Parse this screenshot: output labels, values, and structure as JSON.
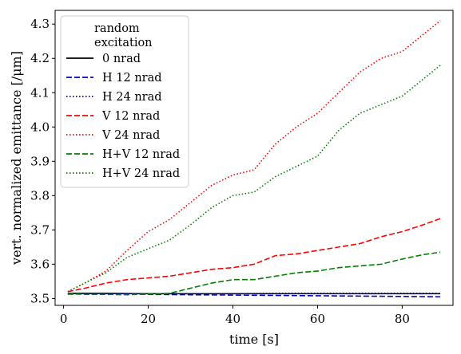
{
  "chart_data": {
    "type": "line",
    "xlabel": "time [s]",
    "ylabel": "vert. normalized emittance [/μm]",
    "xlim": [
      -2,
      92
    ],
    "ylim": [
      3.48,
      4.34
    ],
    "xticks": [
      0,
      20,
      40,
      60,
      80
    ],
    "yticks": [
      3.5,
      3.6,
      3.7,
      3.8,
      3.9,
      4.0,
      4.1,
      4.2,
      4.3
    ],
    "legend": {
      "title_line1": "random",
      "title_line2": "excitation",
      "placement": "top-left"
    },
    "series": [
      {
        "name": "0 nrad",
        "color": "#000000",
        "dash": "solid",
        "x": [
          1,
          10,
          20,
          30,
          40,
          50,
          60,
          70,
          80,
          89
        ],
        "y": [
          3.515,
          3.515,
          3.514,
          3.514,
          3.514,
          3.514,
          3.514,
          3.514,
          3.514,
          3.514
        ]
      },
      {
        "name": "H 12 nrad",
        "color": "#0000cc",
        "dash": "dashed",
        "x": [
          1,
          10,
          20,
          30,
          40,
          50,
          60,
          70,
          80,
          89
        ],
        "y": [
          3.513,
          3.513,
          3.512,
          3.511,
          3.51,
          3.509,
          3.508,
          3.507,
          3.506,
          3.505
        ]
      },
      {
        "name": "H 24 nrad",
        "color": "#0000cc",
        "dash": "dotted",
        "x": [
          1,
          10,
          20,
          30,
          40,
          50,
          60,
          70,
          80,
          89
        ],
        "y": [
          3.514,
          3.514,
          3.514,
          3.514,
          3.514,
          3.515,
          3.515,
          3.515,
          3.515,
          3.515
        ]
      },
      {
        "name": "V 12 nrad",
        "color": "#ff0000",
        "dash": "dashed",
        "x": [
          1,
          5,
          10,
          15,
          20,
          25,
          30,
          35,
          40,
          45,
          50,
          55,
          60,
          65,
          70,
          75,
          80,
          85,
          89
        ],
        "y": [
          3.52,
          3.53,
          3.545,
          3.555,
          3.56,
          3.565,
          3.575,
          3.585,
          3.59,
          3.6,
          3.625,
          3.63,
          3.64,
          3.65,
          3.66,
          3.68,
          3.695,
          3.715,
          3.733
        ]
      },
      {
        "name": "V 24 nrad",
        "color": "#ff0000",
        "dash": "dotted",
        "x": [
          1,
          5,
          10,
          15,
          20,
          25,
          30,
          35,
          40,
          45,
          50,
          55,
          60,
          65,
          70,
          75,
          80,
          85,
          89
        ],
        "y": [
          3.52,
          3.545,
          3.58,
          3.64,
          3.695,
          3.73,
          3.78,
          3.83,
          3.86,
          3.875,
          3.95,
          4.0,
          4.04,
          4.1,
          4.16,
          4.2,
          4.22,
          4.27,
          4.31
        ]
      },
      {
        "name": "H+V 12 nrad",
        "color": "#008000",
        "dash": "dashed",
        "x": [
          1,
          5,
          10,
          15,
          20,
          25,
          30,
          35,
          40,
          45,
          50,
          55,
          60,
          65,
          70,
          75,
          80,
          85,
          89
        ],
        "y": [
          3.515,
          3.512,
          3.512,
          3.511,
          3.513,
          3.515,
          3.53,
          3.545,
          3.555,
          3.555,
          3.565,
          3.575,
          3.58,
          3.59,
          3.595,
          3.6,
          3.615,
          3.628,
          3.635
        ]
      },
      {
        "name": "H+V 24 nrad",
        "color": "#008000",
        "dash": "dotted",
        "x": [
          1,
          5,
          10,
          15,
          20,
          25,
          30,
          35,
          40,
          45,
          50,
          55,
          60,
          65,
          70,
          75,
          80,
          85,
          89
        ],
        "y": [
          3.52,
          3.545,
          3.575,
          3.62,
          3.645,
          3.67,
          3.715,
          3.765,
          3.8,
          3.81,
          3.855,
          3.885,
          3.915,
          3.99,
          4.04,
          4.065,
          4.09,
          4.14,
          4.18
        ]
      }
    ]
  }
}
